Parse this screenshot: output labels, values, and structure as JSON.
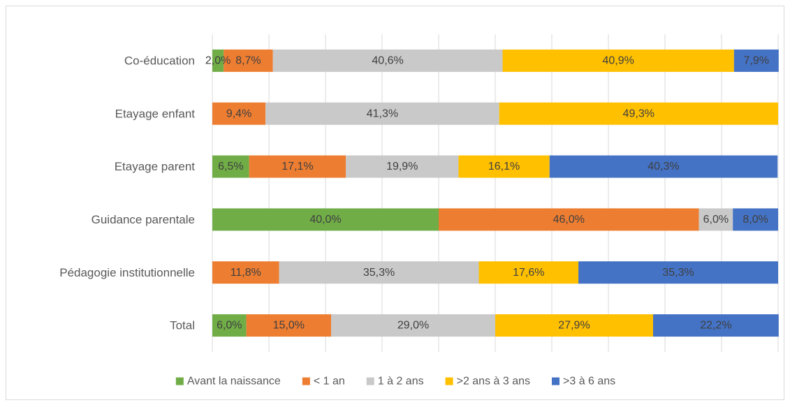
{
  "chart_data": {
    "type": "bar",
    "orientation": "horizontal",
    "stacked": true,
    "percent_stacked": true,
    "categories": [
      "Co-éducation",
      "Etayage enfant",
      "Etayage parent",
      "Guidance parentale",
      "Pédagogie institutionnelle",
      "Total"
    ],
    "series": [
      {
        "name": "Avant la naissance",
        "color": "#70AD47",
        "values": [
          2.0,
          0,
          6.5,
          40.0,
          0,
          6.0
        ],
        "labels": [
          "2,0%",
          "",
          "6,5%",
          "40,0%",
          "",
          "6,0%"
        ]
      },
      {
        "name": "< 1 an",
        "color": "#ED7D31",
        "values": [
          8.7,
          9.4,
          17.1,
          46.0,
          11.8,
          15.0
        ],
        "labels": [
          "8,7%",
          "9,4%",
          "17,1%",
          "46,0%",
          "11,8%",
          "15,0%"
        ]
      },
      {
        "name": "1 à 2 ans",
        "color": "#C9C9C9",
        "values": [
          40.6,
          41.3,
          19.9,
          6.0,
          35.3,
          29.0
        ],
        "labels": [
          "40,6%",
          "41,3%",
          "19,9%",
          "6,0%",
          "35,3%",
          "29,0%"
        ]
      },
      {
        "name": ">2 ans à 3 ans",
        "color": "#FFC000",
        "values": [
          40.9,
          49.3,
          16.1,
          0,
          17.6,
          27.9
        ],
        "labels": [
          "40,9%",
          "49,3%",
          "16,1%",
          "",
          "17,6%",
          "27,9%"
        ]
      },
      {
        "name": ">3 à 6 ans",
        "color": "#4472C4",
        "values": [
          7.9,
          0,
          40.3,
          8.0,
          35.3,
          22.2
        ],
        "labels": [
          "7,9%",
          "",
          "40,3%",
          "8,0%",
          "35,3%",
          "22,2%"
        ]
      }
    ],
    "xlim": [
      0,
      100
    ],
    "grid": true,
    "legend_position": "bottom"
  }
}
